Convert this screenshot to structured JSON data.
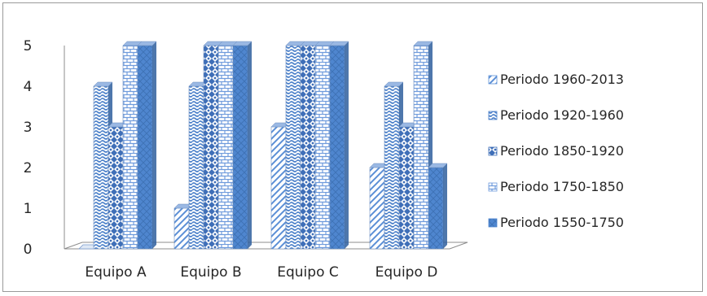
{
  "chart_data": {
    "type": "bar",
    "style": "3d-clustered-column",
    "categories": [
      "Equipo A",
      "Equipo B",
      "Equipo C",
      "Equipo D"
    ],
    "series": [
      {
        "name": "Periodo 1960-2013",
        "values": [
          0,
          1,
          3,
          2
        ],
        "pattern": "diag",
        "color": "#5b8fd6"
      },
      {
        "name": "Periodo 1920-1960",
        "values": [
          4,
          4,
          5,
          4
        ],
        "pattern": "wave",
        "color": "#4a7fc9"
      },
      {
        "name": "Periodo 1850-1920",
        "values": [
          3,
          5,
          5,
          3
        ],
        "pattern": "diamond",
        "color": "#3f6fb8"
      },
      {
        "name": "Periodo 1750-1850",
        "values": [
          5,
          5,
          5,
          5
        ],
        "pattern": "brick",
        "color": "#6f9bdc"
      },
      {
        "name": "Periodo 1550-1750",
        "values": [
          5,
          5,
          5,
          2
        ],
        "pattern": "solid",
        "color": "#4f86cf"
      }
    ],
    "yticks": [
      "0",
      "1",
      "2",
      "3",
      "4",
      "5"
    ],
    "ylim": [
      0,
      5
    ],
    "title": "",
    "xlabel": "",
    "ylabel": "",
    "legend_position": "right",
    "grid": false
  }
}
